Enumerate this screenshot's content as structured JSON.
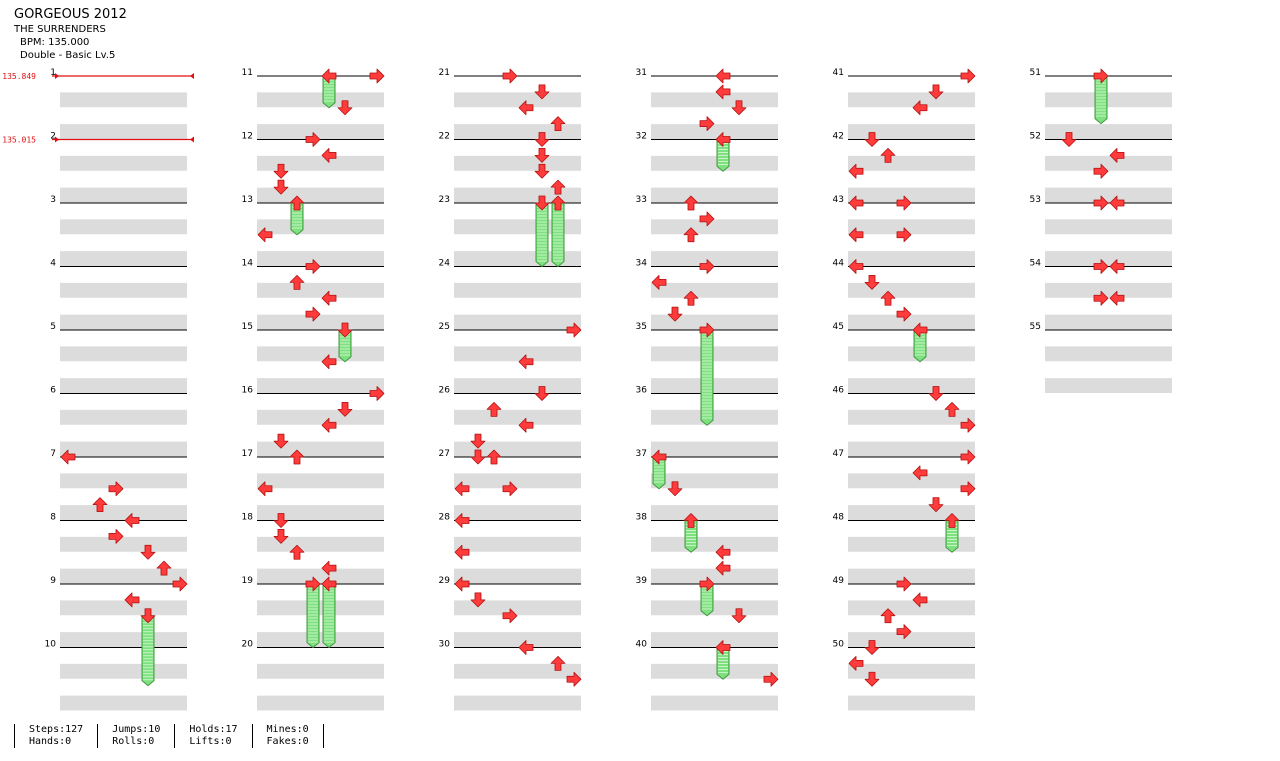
{
  "song": {
    "title": "GORGEOUS 2012",
    "artist": "THE SURRENDERS",
    "bpm": "BPM: 135.000",
    "chart": "Double - Basic Lv.5"
  },
  "bpm_changes": [
    {
      "measure": 1,
      "label": "135.849"
    },
    {
      "measure": 2,
      "label": "135.015"
    }
  ],
  "measures": [
    {
      "n": "1",
      "notes": []
    },
    {
      "n": "2",
      "notes": []
    },
    {
      "n": "3",
      "notes": []
    },
    {
      "n": "4",
      "notes": []
    },
    {
      "n": "5",
      "notes": []
    },
    {
      "n": "6",
      "notes": []
    },
    {
      "n": "7",
      "notes": [
        [
          0,
          0,
          "L"
        ],
        [
          3,
          0.5,
          "R"
        ],
        [
          2,
          0.75,
          "U"
        ]
      ]
    },
    {
      "n": "8",
      "notes": [
        [
          4,
          0,
          "L"
        ],
        [
          3,
          0.25,
          "R"
        ],
        [
          5,
          0.5,
          "D"
        ],
        [
          6,
          0.75,
          "U"
        ]
      ]
    },
    {
      "n": "9",
      "notes": [
        [
          7,
          0,
          "R"
        ],
        [
          4,
          0.25,
          "L"
        ],
        [
          5,
          0.5,
          "D",
          1.1
        ]
      ]
    },
    {
      "n": "10",
      "notes": []
    },
    {
      "n": "11",
      "notes": [
        [
          4,
          0,
          "L",
          0.5
        ],
        [
          7,
          0,
          "R"
        ],
        [
          5,
          0.5,
          "D"
        ]
      ]
    },
    {
      "n": "12",
      "notes": [
        [
          3,
          0,
          "R"
        ],
        [
          4,
          0.25,
          "L"
        ],
        [
          1,
          0.5,
          "D"
        ],
        [
          1,
          0.75,
          "D"
        ]
      ]
    },
    {
      "n": "13",
      "notes": [
        [
          2,
          0,
          "U",
          0.5
        ],
        [
          0,
          0.5,
          "L"
        ]
      ]
    },
    {
      "n": "14",
      "notes": [
        [
          3,
          0,
          "R"
        ],
        [
          2,
          0.25,
          "U"
        ],
        [
          4,
          0.5,
          "L"
        ],
        [
          3,
          0.75,
          "R"
        ]
      ]
    },
    {
      "n": "15",
      "notes": [
        [
          5,
          0,
          "D",
          0.5
        ],
        [
          4,
          0.5,
          "L"
        ]
      ]
    },
    {
      "n": "16",
      "notes": [
        [
          7,
          0,
          "R"
        ],
        [
          5,
          0.25,
          "D"
        ],
        [
          4,
          0.5,
          "L"
        ],
        [
          1,
          0.75,
          "D"
        ]
      ]
    },
    {
      "n": "17",
      "notes": [
        [
          2,
          0,
          "U"
        ],
        [
          0,
          0.5,
          "L"
        ]
      ]
    },
    {
      "n": "18",
      "notes": [
        [
          1,
          0,
          "D"
        ],
        [
          1,
          0.25,
          "D"
        ],
        [
          2,
          0.5,
          "U"
        ],
        [
          4,
          0.75,
          "L"
        ]
      ]
    },
    {
      "n": "19",
      "notes": [
        [
          3,
          0,
          "R",
          1
        ],
        [
          4,
          0,
          "L",
          1
        ]
      ]
    },
    {
      "n": "20",
      "notes": []
    },
    {
      "n": "21",
      "notes": [
        [
          3,
          0,
          "R"
        ],
        [
          5,
          0.25,
          "D"
        ],
        [
          4,
          0.5,
          "L"
        ],
        [
          6,
          0.75,
          "U"
        ]
      ]
    },
    {
      "n": "22",
      "notes": [
        [
          5,
          0,
          "D"
        ],
        [
          5,
          0.25,
          "D"
        ],
        [
          5,
          0.5,
          "D"
        ],
        [
          6,
          0.75,
          "U"
        ]
      ]
    },
    {
      "n": "23",
      "notes": [
        [
          5,
          0,
          "D",
          1
        ],
        [
          6,
          0,
          "U",
          1
        ]
      ]
    },
    {
      "n": "24",
      "notes": []
    },
    {
      "n": "25",
      "notes": [
        [
          7,
          0,
          "R"
        ],
        [
          4,
          0.5,
          "L"
        ]
      ]
    },
    {
      "n": "26",
      "notes": [
        [
          5,
          0,
          "D"
        ],
        [
          2,
          0.25,
          "U"
        ],
        [
          4,
          0.5,
          "L"
        ],
        [
          1,
          0.75,
          "D"
        ]
      ]
    },
    {
      "n": "27",
      "notes": [
        [
          1,
          0,
          "D"
        ],
        [
          2,
          0,
          "U"
        ],
        [
          0,
          0.5,
          "L"
        ],
        [
          3,
          0.5,
          "R"
        ]
      ]
    },
    {
      "n": "28",
      "notes": [
        [
          0,
          0,
          "L"
        ],
        [
          0,
          0.5,
          "L"
        ]
      ]
    },
    {
      "n": "29",
      "notes": [
        [
          0,
          0,
          "L"
        ],
        [
          1,
          0.25,
          "D"
        ],
        [
          3,
          0.5,
          "R"
        ]
      ]
    },
    {
      "n": "30",
      "notes": [
        [
          4,
          0,
          "L"
        ],
        [
          6,
          0.25,
          "U"
        ],
        [
          7,
          0.5,
          "R"
        ]
      ]
    },
    {
      "n": "31",
      "notes": [
        [
          4,
          0,
          "L"
        ],
        [
          4,
          0.25,
          "L"
        ],
        [
          5,
          0.5,
          "D"
        ],
        [
          3,
          0.75,
          "R"
        ]
      ]
    },
    {
      "n": "32",
      "notes": [
        [
          4,
          0,
          "L",
          0.5
        ]
      ]
    },
    {
      "n": "33",
      "notes": [
        [
          2,
          0,
          "U"
        ],
        [
          3,
          0.25,
          "R"
        ],
        [
          2,
          0.5,
          "U"
        ]
      ]
    },
    {
      "n": "34",
      "notes": [
        [
          3,
          0,
          "R"
        ],
        [
          0,
          0.25,
          "L"
        ],
        [
          2,
          0.5,
          "U"
        ],
        [
          1,
          0.75,
          "D"
        ]
      ]
    },
    {
      "n": "35",
      "notes": [
        [
          3,
          0,
          "R",
          1.5
        ]
      ]
    },
    {
      "n": "36",
      "notes": []
    },
    {
      "n": "37",
      "notes": [
        [
          0,
          0,
          "L",
          0.5
        ],
        [
          1,
          0.5,
          "D"
        ]
      ]
    },
    {
      "n": "38",
      "notes": [
        [
          2,
          0,
          "U",
          0.5
        ],
        [
          4,
          0.5,
          "L"
        ],
        [
          4,
          0.75,
          "L"
        ]
      ]
    },
    {
      "n": "39",
      "notes": [
        [
          3,
          0,
          "R",
          0.5
        ],
        [
          5,
          0.5,
          "D"
        ]
      ]
    },
    {
      "n": "40",
      "notes": [
        [
          4,
          0,
          "L",
          0.5
        ],
        [
          7,
          0.5,
          "R"
        ]
      ]
    },
    {
      "n": "41",
      "notes": [
        [
          7,
          0,
          "R"
        ],
        [
          5,
          0.25,
          "D"
        ],
        [
          4,
          0.5,
          "L"
        ]
      ]
    },
    {
      "n": "42",
      "notes": [
        [
          1,
          0,
          "D"
        ],
        [
          2,
          0.25,
          "U"
        ],
        [
          0,
          0.5,
          "L"
        ]
      ]
    },
    {
      "n": "43",
      "notes": [
        [
          0,
          0,
          "L"
        ],
        [
          3,
          0,
          "R"
        ],
        [
          0,
          0.5,
          "L"
        ],
        [
          3,
          0.5,
          "R"
        ]
      ]
    },
    {
      "n": "44",
      "notes": [
        [
          0,
          0,
          "L"
        ],
        [
          1,
          0.25,
          "D"
        ],
        [
          2,
          0.5,
          "U"
        ],
        [
          3,
          0.75,
          "R"
        ]
      ]
    },
    {
      "n": "45",
      "notes": [
        [
          4,
          0,
          "L",
          0.5
        ]
      ]
    },
    {
      "n": "46",
      "notes": [
        [
          5,
          0,
          "D"
        ],
        [
          6,
          0.25,
          "U"
        ],
        [
          7,
          0.5,
          "R"
        ]
      ]
    },
    {
      "n": "47",
      "notes": [
        [
          7,
          0,
          "R"
        ],
        [
          4,
          0.25,
          "L"
        ],
        [
          7,
          0.5,
          "R"
        ],
        [
          5,
          0.75,
          "D"
        ]
      ]
    },
    {
      "n": "48",
      "notes": [
        [
          6,
          0,
          "U",
          0.5
        ]
      ]
    },
    {
      "n": "49",
      "notes": [
        [
          3,
          0,
          "R"
        ],
        [
          4,
          0.25,
          "L"
        ],
        [
          2,
          0.5,
          "U"
        ],
        [
          3,
          0.75,
          "R"
        ]
      ]
    },
    {
      "n": "50",
      "notes": [
        [
          1,
          0,
          "D"
        ],
        [
          0,
          0.25,
          "L"
        ],
        [
          1,
          0.5,
          "D"
        ]
      ]
    },
    {
      "n": "51",
      "notes": [
        [
          3,
          0,
          "R",
          0.75
        ]
      ]
    },
    {
      "n": "52",
      "notes": [
        [
          1,
          0,
          "D"
        ],
        [
          4,
          0.25,
          "L"
        ],
        [
          3,
          0.5,
          "R"
        ]
      ]
    },
    {
      "n": "53",
      "notes": [
        [
          3,
          0,
          "R"
        ],
        [
          4,
          0,
          "L"
        ]
      ]
    },
    {
      "n": "54",
      "notes": [
        [
          3,
          0,
          "R"
        ],
        [
          4,
          0,
          "L"
        ],
        [
          3,
          0.5,
          "R"
        ],
        [
          4,
          0.5,
          "L"
        ]
      ]
    },
    {
      "n": "55",
      "notes": []
    }
  ],
  "stats": [
    {
      "a": "Steps:127",
      "b": "Hands:0"
    },
    {
      "a": "Jumps:10",
      "b": "Rolls:0"
    },
    {
      "a": "Holds:17",
      "b": "Lifts:0"
    },
    {
      "a": "Mines:0",
      "b": "Fakes:0"
    }
  ],
  "colors": {
    "arrow": "#ff3b3b",
    "arrow_edge": "#b01010",
    "hold": "#7ee07e",
    "hold_edge": "#3f9a3f",
    "stripe": "#dcdcdc",
    "measure_line": "#000000",
    "bpm": "#e01010"
  }
}
